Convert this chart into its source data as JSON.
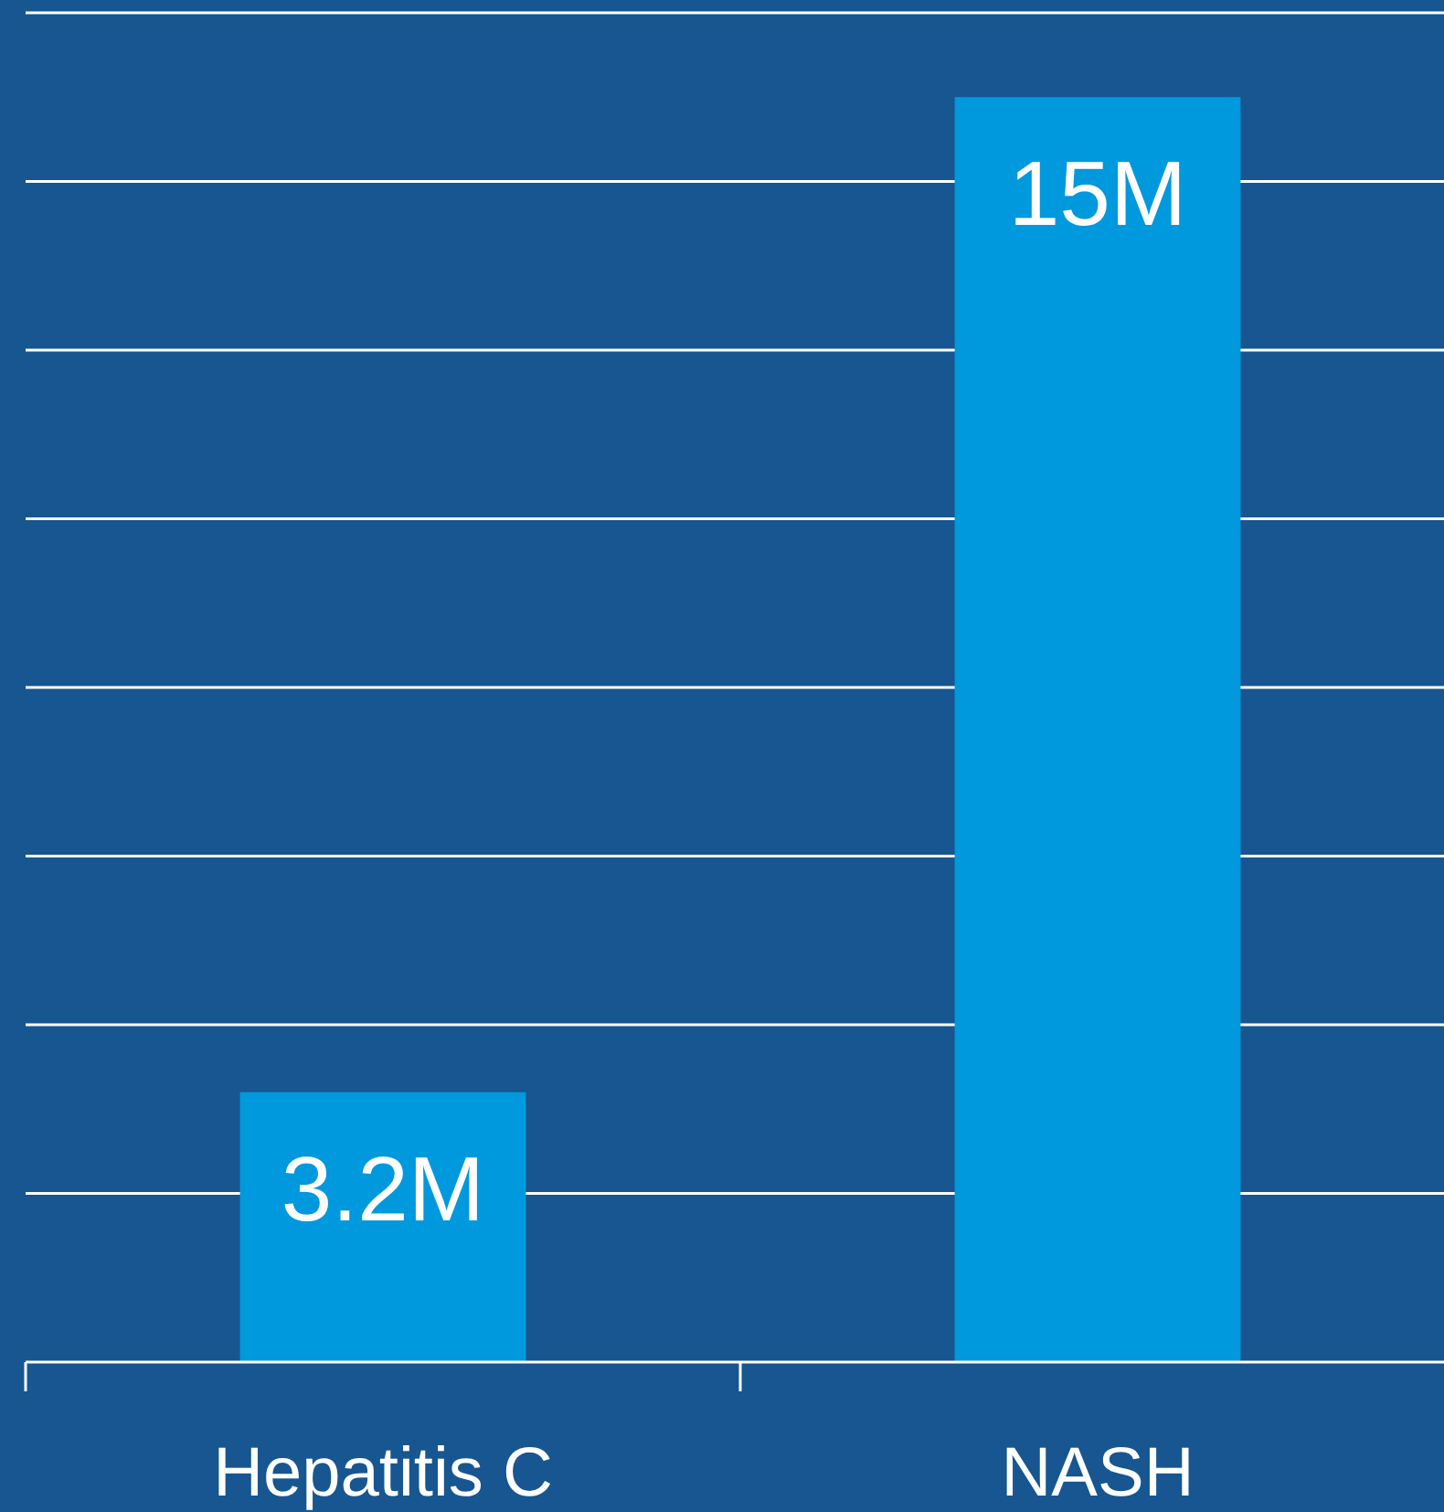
{
  "chart_data": {
    "type": "bar",
    "categories": [
      "Hepatitis C",
      "NASH"
    ],
    "values": [
      3.2,
      15
    ],
    "color": "#0099dd",
    "value_labels": [
      "3.2M",
      "15M"
    ],
    "ylim": [
      0,
      16
    ],
    "yticks": [
      {
        "value": 0,
        "label": null
      },
      {
        "value": 2,
        "label": null
      },
      {
        "value": 4,
        "label": null
      },
      {
        "value": 6,
        "label": null
      },
      {
        "value": 8,
        "label": null
      },
      {
        "value": 10,
        "label": null
      },
      {
        "value": 12,
        "label": null
      },
      {
        "value": 14,
        "label": null
      },
      {
        "value": 16,
        "label": null
      }
    ],
    "grid": "y",
    "tick_labels": "x"
  }
}
